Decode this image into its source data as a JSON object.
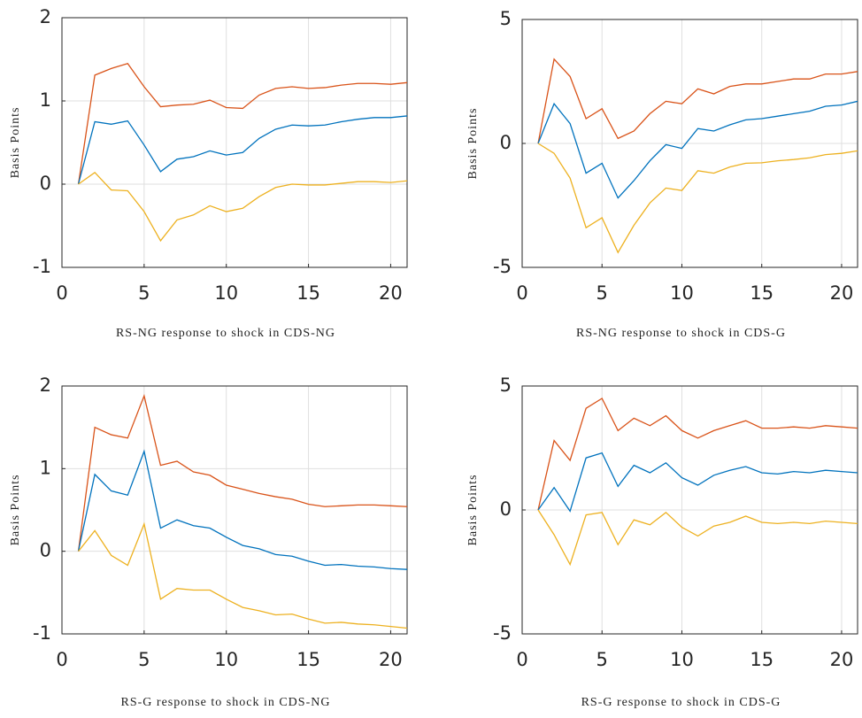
{
  "chart_data": [
    {
      "type": "line",
      "xlabel": "RS-NG response to shock in CDS-NG",
      "ylabel": "Basis Points",
      "x": [
        1,
        2,
        3,
        4,
        5,
        6,
        7,
        8,
        9,
        10,
        11,
        12,
        13,
        14,
        15,
        16,
        17,
        18,
        19,
        20,
        21
      ],
      "series": [
        {
          "color": "#d95319",
          "values": [
            0,
            1.31,
            1.39,
            1.45,
            1.17,
            0.93,
            0.95,
            0.96,
            1.01,
            0.92,
            0.91,
            1.07,
            1.15,
            1.17,
            1.15,
            1.16,
            1.19,
            1.21,
            1.21,
            1.2,
            1.22
          ]
        },
        {
          "color": "#0072bd",
          "values": [
            0,
            0.75,
            0.72,
            0.76,
            0.47,
            0.15,
            0.3,
            0.33,
            0.4,
            0.35,
            0.38,
            0.55,
            0.66,
            0.71,
            0.7,
            0.71,
            0.75,
            0.78,
            0.8,
            0.8,
            0.82
          ]
        },
        {
          "color": "#edb120",
          "values": [
            0,
            0.14,
            -0.07,
            -0.08,
            -0.33,
            -0.68,
            -0.43,
            -0.37,
            -0.26,
            -0.33,
            -0.29,
            -0.15,
            -0.04,
            0.0,
            -0.01,
            -0.01,
            0.01,
            0.03,
            0.03,
            0.02,
            0.04
          ]
        }
      ],
      "xlim": [
        0,
        21
      ],
      "ylim": [
        -1,
        2
      ],
      "xticks": [
        0,
        5,
        10,
        15,
        20
      ],
      "yticks": [
        -1,
        0,
        1,
        2
      ],
      "grid": true
    },
    {
      "type": "line",
      "xlabel": "RS-NG response to shock in CDS-G",
      "ylabel": "Basis Points",
      "x": [
        1,
        2,
        3,
        4,
        5,
        6,
        7,
        8,
        9,
        10,
        11,
        12,
        13,
        14,
        15,
        16,
        17,
        18,
        19,
        20,
        21
      ],
      "series": [
        {
          "color": "#d95319",
          "values": [
            0,
            3.4,
            2.7,
            1.0,
            1.4,
            0.2,
            0.5,
            1.2,
            1.7,
            1.6,
            2.2,
            2.0,
            2.3,
            2.4,
            2.4,
            2.5,
            2.6,
            2.6,
            2.8,
            2.8,
            2.9
          ]
        },
        {
          "color": "#0072bd",
          "values": [
            0,
            1.6,
            0.8,
            -1.2,
            -0.8,
            -2.2,
            -1.5,
            -0.7,
            -0.05,
            -0.2,
            0.6,
            0.5,
            0.75,
            0.95,
            1.0,
            1.1,
            1.2,
            1.3,
            1.5,
            1.55,
            1.7
          ]
        },
        {
          "color": "#edb120",
          "values": [
            0,
            -0.4,
            -1.4,
            -3.4,
            -3.0,
            -4.4,
            -3.3,
            -2.4,
            -1.8,
            -1.9,
            -1.1,
            -1.2,
            -0.95,
            -0.8,
            -0.78,
            -0.7,
            -0.65,
            -0.58,
            -0.45,
            -0.4,
            -0.3
          ]
        }
      ],
      "xlim": [
        0,
        21
      ],
      "ylim": [
        -5,
        5
      ],
      "xticks": [
        0,
        5,
        10,
        15,
        20
      ],
      "yticks": [
        -5,
        0,
        5
      ],
      "grid": true
    },
    {
      "type": "line",
      "xlabel": "RS-G response to shock in CDS-NG",
      "ylabel": "Basis Points",
      "x": [
        1,
        2,
        3,
        4,
        5,
        6,
        7,
        8,
        9,
        10,
        11,
        12,
        13,
        14,
        15,
        16,
        17,
        18,
        19,
        20,
        21
      ],
      "series": [
        {
          "color": "#d95319",
          "values": [
            0,
            1.5,
            1.41,
            1.37,
            1.88,
            1.04,
            1.09,
            0.96,
            0.92,
            0.8,
            0.75,
            0.7,
            0.66,
            0.63,
            0.57,
            0.54,
            0.55,
            0.56,
            0.56,
            0.55,
            0.54
          ]
        },
        {
          "color": "#0072bd",
          "values": [
            0,
            0.93,
            0.73,
            0.68,
            1.21,
            0.28,
            0.38,
            0.31,
            0.28,
            0.17,
            0.07,
            0.03,
            -0.04,
            -0.06,
            -0.12,
            -0.17,
            -0.16,
            -0.18,
            -0.19,
            -0.21,
            -0.22
          ]
        },
        {
          "color": "#edb120",
          "values": [
            0,
            0.25,
            -0.05,
            -0.17,
            0.33,
            -0.58,
            -0.45,
            -0.47,
            -0.47,
            -0.58,
            -0.68,
            -0.72,
            -0.77,
            -0.76,
            -0.82,
            -0.87,
            -0.86,
            -0.88,
            -0.89,
            -0.91,
            -0.93
          ]
        }
      ],
      "xlim": [
        0,
        21
      ],
      "ylim": [
        -1,
        2
      ],
      "xticks": [
        0,
        5,
        10,
        15,
        20
      ],
      "yticks": [
        -1,
        0,
        1,
        2
      ],
      "grid": true
    },
    {
      "type": "line",
      "xlabel": "RS-G response to shock in CDS-G",
      "ylabel": "Basis Points",
      "x": [
        1,
        2,
        3,
        4,
        5,
        6,
        7,
        8,
        9,
        10,
        11,
        12,
        13,
        14,
        15,
        16,
        17,
        18,
        19,
        20,
        21
      ],
      "series": [
        {
          "color": "#d95319",
          "values": [
            0,
            2.8,
            2.0,
            4.1,
            4.5,
            3.2,
            3.7,
            3.4,
            3.8,
            3.2,
            2.9,
            3.2,
            3.4,
            3.6,
            3.3,
            3.3,
            3.35,
            3.3,
            3.4,
            3.35,
            3.3
          ]
        },
        {
          "color": "#0072bd",
          "values": [
            0,
            0.9,
            -0.05,
            2.1,
            2.3,
            0.95,
            1.8,
            1.5,
            1.9,
            1.3,
            1.0,
            1.4,
            1.6,
            1.75,
            1.5,
            1.45,
            1.55,
            1.5,
            1.6,
            1.55,
            1.5
          ]
        },
        {
          "color": "#edb120",
          "values": [
            0,
            -1.0,
            -2.2,
            -0.2,
            -0.1,
            -1.4,
            -0.4,
            -0.6,
            -0.1,
            -0.7,
            -1.05,
            -0.65,
            -0.5,
            -0.25,
            -0.5,
            -0.55,
            -0.5,
            -0.55,
            -0.45,
            -0.5,
            -0.55
          ]
        }
      ],
      "xlim": [
        0,
        21
      ],
      "ylim": [
        -5,
        5
      ],
      "xticks": [
        0,
        5,
        10,
        15,
        20
      ],
      "yticks": [
        -5,
        0,
        5
      ],
      "grid": true
    }
  ]
}
